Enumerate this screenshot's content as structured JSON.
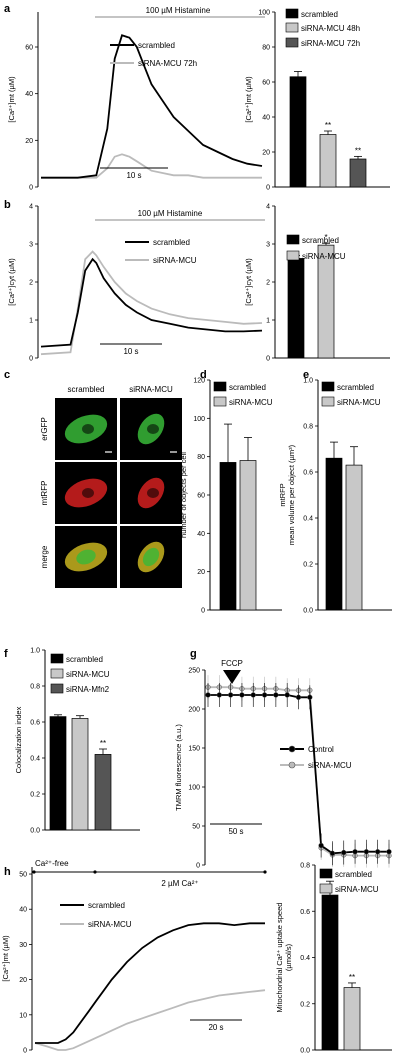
{
  "panel_labels": [
    "a",
    "b",
    "c",
    "d",
    "e",
    "f",
    "g",
    "h"
  ],
  "colors": {
    "black": "#000000",
    "light_gray": "#bbbbbb",
    "mid_gray": "#c8c8c8",
    "dark_gray": "#555555",
    "er_green": "#38b838",
    "mt_red": "#d42020",
    "merge_yellow": "#c8b420"
  },
  "chart_data": [
    {
      "id": "a_trace",
      "type": "line",
      "annotation": "100 µM Histamine",
      "ylabel": "[Ca²⁺]mt (µM)",
      "yticks": [
        "0",
        "20",
        "40",
        "60"
      ],
      "ylim": [
        0,
        75
      ],
      "xlim": [
        0,
        60
      ],
      "scalebar": "10 s",
      "series": [
        {
          "name": "scrambled",
          "color": "#000000",
          "x": [
            0,
            10,
            15,
            18,
            20,
            22,
            24,
            26,
            28,
            30,
            33,
            36,
            40,
            44,
            48,
            52,
            56,
            60
          ],
          "y": [
            4,
            4,
            5,
            25,
            55,
            65,
            64,
            60,
            52,
            44,
            37,
            30,
            24,
            18,
            15,
            12,
            10,
            9
          ]
        },
        {
          "name": "siRNA-MCU 72h",
          "color": "#bbbbbb",
          "x": [
            0,
            10,
            15,
            18,
            20,
            22,
            24,
            26,
            28,
            30,
            33,
            36,
            40,
            44,
            48,
            52,
            56,
            60
          ],
          "y": [
            4,
            4,
            4,
            8,
            13,
            14,
            13,
            11,
            9,
            7,
            6,
            5,
            5,
            4,
            4,
            4,
            4,
            4
          ]
        }
      ]
    },
    {
      "id": "a_bar",
      "type": "bar",
      "ylabel": "[Ca²⁺]mt (µM)",
      "yticks": [
        "0",
        "20",
        "40",
        "60",
        "80",
        "100"
      ],
      "ylim": [
        0,
        100
      ],
      "categories": [
        "scrambled",
        "siRNA-MCU 48h",
        "siRNA-MCU 72h"
      ],
      "values": [
        63,
        30,
        16
      ],
      "errors": [
        3,
        2,
        1.5
      ],
      "significance": [
        "",
        "**",
        "**"
      ],
      "colors": [
        "#000000",
        "#c8c8c8",
        "#555555"
      ]
    },
    {
      "id": "b_trace",
      "type": "line",
      "annotation": "100 µM Histamine",
      "ylabel": "[Ca²⁺]cyt (µM)",
      "yticks": [
        "0",
        "1",
        "2",
        "3",
        "4"
      ],
      "ylim": [
        0,
        4
      ],
      "xlim": [
        0,
        60
      ],
      "scalebar": "10 s",
      "series": [
        {
          "name": "scrambled",
          "color": "#000000",
          "x": [
            0,
            8,
            10,
            12,
            14,
            15,
            17,
            20,
            23,
            26,
            30,
            35,
            40,
            45,
            50,
            55,
            60
          ],
          "y": [
            0.3,
            0.35,
            1.2,
            2.3,
            2.6,
            2.5,
            2.1,
            1.7,
            1.4,
            1.2,
            1.0,
            0.9,
            0.8,
            0.75,
            0.7,
            0.7,
            0.72
          ]
        },
        {
          "name": "siRNA-MCU",
          "color": "#bbbbbb",
          "x": [
            0,
            8,
            10,
            12,
            14,
            15,
            17,
            20,
            23,
            26,
            30,
            35,
            40,
            45,
            50,
            55,
            60
          ],
          "y": [
            0.1,
            0.15,
            1.3,
            2.6,
            2.8,
            2.7,
            2.4,
            2.0,
            1.7,
            1.5,
            1.3,
            1.15,
            1.05,
            1.0,
            0.95,
            0.9,
            0.92
          ]
        }
      ]
    },
    {
      "id": "b_bar",
      "type": "bar",
      "ylabel": "[Ca²⁺]cyt (µM)",
      "yticks": [
        "0",
        "1",
        "2",
        "3",
        "4"
      ],
      "ylim": [
        0,
        4
      ],
      "categories": [
        "scrambled",
        "siRNA-MCU"
      ],
      "values": [
        2.62,
        2.97
      ],
      "errors": [
        0.08,
        0.05
      ],
      "significance": [
        "",
        "*"
      ],
      "colors": [
        "#000000",
        "#c8c8c8"
      ]
    },
    {
      "id": "d_bar",
      "type": "bar",
      "ylabel": [
        "mtRFP",
        "number of objects per cell"
      ],
      "yticks": [
        "0",
        "20",
        "40",
        "60",
        "80",
        "100",
        "120"
      ],
      "ylim": [
        0,
        120
      ],
      "categories": [
        "scrambled",
        "siRNA-MCU"
      ],
      "values": [
        77,
        78
      ],
      "errors": [
        20,
        12
      ],
      "significance": [
        "",
        ""
      ],
      "colors": [
        "#000000",
        "#c8c8c8"
      ]
    },
    {
      "id": "e_bar",
      "type": "bar",
      "ylabel": [
        "mtRFP",
        "mean volume per object (µm³)"
      ],
      "yticks": [
        "0.0",
        "0.2",
        "0.4",
        "0.6",
        "0.8",
        "1.0"
      ],
      "ylim": [
        0,
        1.0
      ],
      "categories": [
        "scrambled",
        "siRNA-MCU"
      ],
      "values": [
        0.66,
        0.63
      ],
      "errors": [
        0.07,
        0.08
      ],
      "significance": [
        "",
        ""
      ],
      "colors": [
        "#000000",
        "#c8c8c8"
      ]
    },
    {
      "id": "f_bar",
      "type": "bar",
      "ylabel": "Colocalization index",
      "yticks": [
        "0.0",
        "0.2",
        "0.4",
        "0.6",
        "0.8",
        "1.0"
      ],
      "ylim": [
        0,
        1.0
      ],
      "categories": [
        "scrambled",
        "siRNA-MCU",
        "siRNA-Mfn2"
      ],
      "values": [
        0.63,
        0.62,
        0.42
      ],
      "errors": [
        0.01,
        0.015,
        0.03
      ],
      "significance": [
        "",
        "",
        "**"
      ],
      "colors": [
        "#000000",
        "#c8c8c8",
        "#555555"
      ]
    },
    {
      "id": "g_trace",
      "type": "line",
      "annotation": "FCCP",
      "ylabel": "TMRM fluorescence (a.u.)",
      "yticks": [
        "0",
        "50",
        "100",
        "150",
        "200",
        "250"
      ],
      "ylim": [
        0,
        250
      ],
      "xlim": [
        0,
        160
      ],
      "scalebar": "50 s",
      "series": [
        {
          "name": "Control",
          "color": "#000000",
          "x": [
            0,
            10,
            20,
            30,
            40,
            50,
            60,
            70,
            80,
            90,
            100,
            110,
            120,
            130,
            140,
            150,
            160
          ],
          "y": [
            218,
            218,
            218,
            218,
            218,
            218,
            218,
            218,
            215,
            215,
            25,
            15,
            16,
            17,
            17,
            17,
            17
          ]
        },
        {
          "name": "siRNA-MCU",
          "color": "#bbbbbb",
          "x": [
            0,
            10,
            20,
            30,
            40,
            50,
            60,
            70,
            80,
            90,
            100,
            110,
            120,
            130,
            140,
            150,
            160
          ],
          "y": [
            228,
            228,
            228,
            226,
            226,
            226,
            226,
            224,
            224,
            224,
            22,
            13,
            13,
            12,
            12,
            12,
            12
          ]
        }
      ]
    },
    {
      "id": "h_trace",
      "type": "line",
      "annotations": [
        "Ca²⁺-free",
        "2 µM Ca²⁺"
      ],
      "ylabel": "[Ca²⁺]mt (µM)",
      "yticks": [
        "0",
        "10",
        "20",
        "30",
        "40",
        "50"
      ],
      "ylim": [
        0,
        52
      ],
      "xlim": [
        0,
        150
      ],
      "scalebar": "20 s",
      "series": [
        {
          "name": "scrambled",
          "color": "#000000",
          "x": [
            0,
            8,
            15,
            20,
            25,
            30,
            35,
            40,
            45,
            50,
            60,
            70,
            80,
            90,
            100,
            110,
            120,
            130,
            140,
            150
          ],
          "y": [
            2,
            2,
            2,
            3,
            5,
            8,
            11,
            14,
            17,
            20,
            25,
            29,
            32,
            34,
            35.5,
            36,
            36,
            35.5,
            36,
            36
          ]
        },
        {
          "name": "siRNA-MCU",
          "color": "#bbbbbb",
          "x": [
            0,
            8,
            15,
            20,
            25,
            30,
            35,
            40,
            45,
            50,
            60,
            70,
            80,
            90,
            100,
            110,
            120,
            130,
            140,
            150
          ],
          "y": [
            2,
            1,
            0,
            0,
            0.5,
            1.5,
            2.5,
            3.5,
            4.5,
            5.5,
            7.5,
            9,
            10.5,
            12,
            13.5,
            14.5,
            15.5,
            16,
            16.5,
            17
          ]
        }
      ]
    },
    {
      "id": "h_bar",
      "type": "bar",
      "ylabel": [
        "Mitochondrial Ca²⁺ uptake speed",
        "(µmol/s)"
      ],
      "yticks": [
        "0.0",
        "0.2",
        "0.4",
        "0.6",
        "0.8"
      ],
      "ylim": [
        0,
        0.8
      ],
      "categories": [
        "scrambled",
        "siRNA-MCU"
      ],
      "values": [
        0.67,
        0.27
      ],
      "errors": [
        0.06,
        0.02
      ],
      "significance": [
        "",
        "**"
      ],
      "colors": [
        "#000000",
        "#c8c8c8"
      ]
    }
  ],
  "micrographs": {
    "columns": [
      "scrambled",
      "siRNA-MCU"
    ],
    "rows": [
      "erGFP",
      "mtRFP",
      "merge"
    ]
  }
}
